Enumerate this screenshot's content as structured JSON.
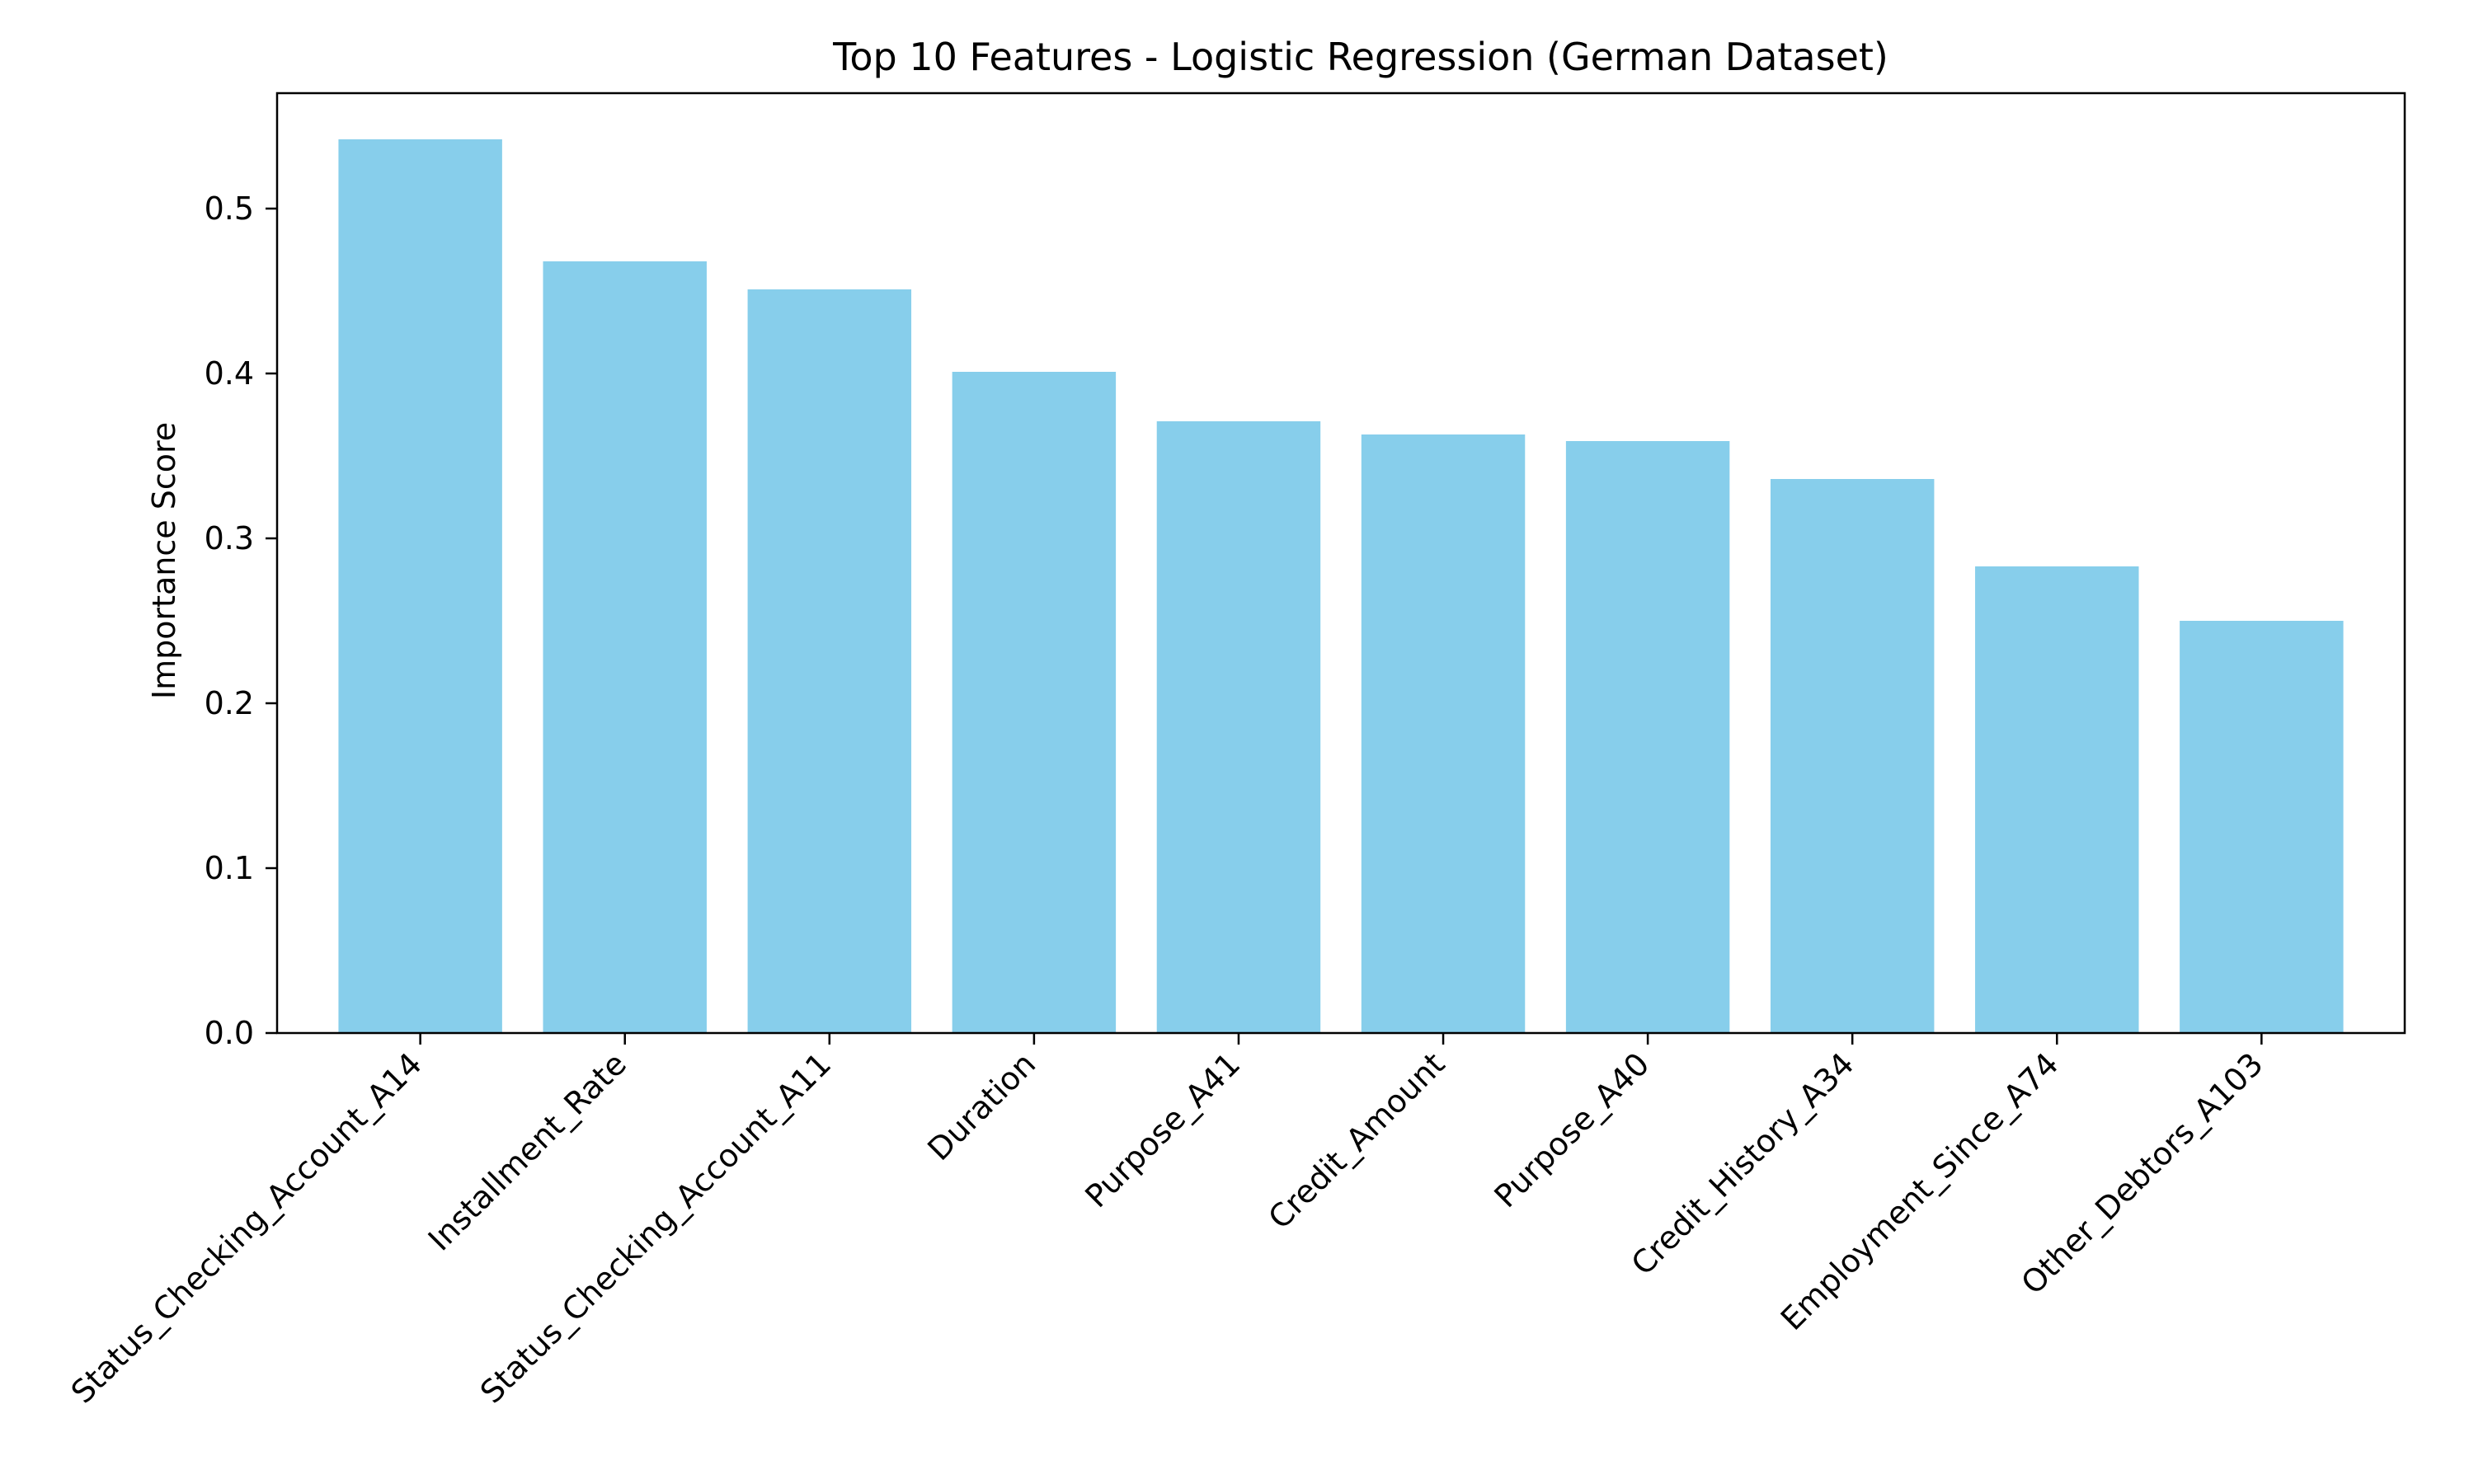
{
  "chart_data": {
    "type": "bar",
    "title": "Top 10 Features - Logistic Regression (German Dataset)",
    "xlabel": "",
    "ylabel": "Importance Score",
    "categories": [
      "Status_Checking_Account_A14",
      "Installment_Rate",
      "Status_Checking_Account_A11",
      "Duration",
      "Purpose_A41",
      "Credit_Amount",
      "Purpose_A40",
      "Credit_History_A34",
      "Employment_Since_A74",
      "Other_Debtors_A103"
    ],
    "values": [
      0.542,
      0.468,
      0.451,
      0.401,
      0.371,
      0.363,
      0.359,
      0.336,
      0.283,
      0.25
    ],
    "ylim": [
      0,
      0.57
    ],
    "yticks": [
      0.0,
      0.1,
      0.2,
      0.3,
      0.4,
      0.5
    ],
    "ytick_labels": [
      "0.0",
      "0.1",
      "0.2",
      "0.3",
      "0.4",
      "0.5"
    ],
    "bar_color": "#87ceeb",
    "grid": false,
    "legend": "none"
  }
}
